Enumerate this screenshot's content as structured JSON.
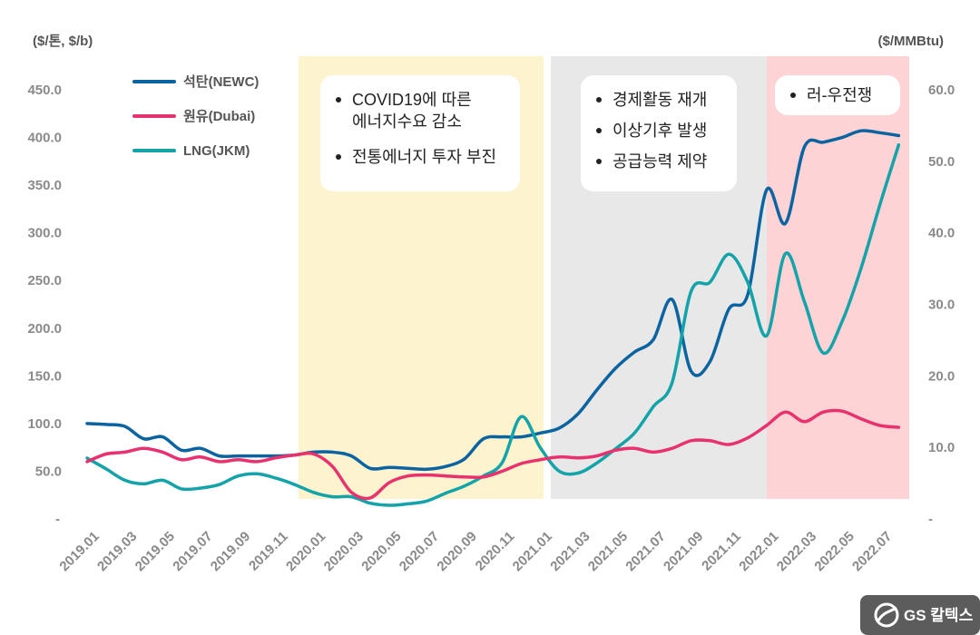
{
  "chart_data": {
    "type": "line",
    "y_left_label": "($/톤, $/b)",
    "y_right_label": "($/MMBtu)",
    "y_left_ticks": [
      "-",
      "50.0",
      "100.0",
      "150.0",
      "200.0",
      "250.0",
      "300.0",
      "350.0",
      "400.0",
      "450.0"
    ],
    "y_right_ticks": [
      "-",
      "10.0",
      "20.0",
      "30.0",
      "40.0",
      "50.0",
      "60.0"
    ],
    "ylim_left": [
      0,
      450
    ],
    "ylim_right": [
      0,
      60
    ],
    "x_tick_labels": [
      "2019.01",
      "2019.03",
      "2019.05",
      "2019.07",
      "2019.09",
      "2019.11",
      "2020.01",
      "2020.03",
      "2020.05",
      "2020.07",
      "2020.09",
      "2020.11",
      "2021.01",
      "2021.03",
      "2021.05",
      "2021.07",
      "2021.09",
      "2021.11",
      "2022.01",
      "2022.03",
      "2022.05",
      "2022.07"
    ],
    "x": [
      "2019.01",
      "2019.02",
      "2019.03",
      "2019.04",
      "2019.05",
      "2019.06",
      "2019.07",
      "2019.08",
      "2019.09",
      "2019.10",
      "2019.11",
      "2019.12",
      "2020.01",
      "2020.02",
      "2020.03",
      "2020.04",
      "2020.05",
      "2020.06",
      "2020.07",
      "2020.08",
      "2020.09",
      "2020.10",
      "2020.11",
      "2020.12",
      "2021.01",
      "2021.02",
      "2021.03",
      "2021.04",
      "2021.05",
      "2021.06",
      "2021.07",
      "2021.08",
      "2021.09",
      "2021.10",
      "2021.11",
      "2021.12",
      "2022.01",
      "2022.02",
      "2022.03",
      "2022.04",
      "2022.05",
      "2022.06",
      "2022.07",
      "2022.08"
    ],
    "series": [
      {
        "name": "석탄(NEWC)",
        "axis": "left",
        "color": "#0b64a0",
        "values": [
          100,
          99,
          97,
          84,
          86,
          72,
          74,
          66,
          66,
          66,
          66,
          67,
          70,
          70,
          66,
          53,
          54,
          53,
          52,
          55,
          63,
          84,
          86,
          86,
          90,
          95,
          110,
          135,
          158,
          175,
          188,
          230,
          155,
          165,
          220,
          235,
          345,
          310,
          390,
          395,
          400,
          407,
          405,
          402
        ]
      },
      {
        "name": "원유(Dubai)",
        "axis": "left",
        "color": "#e8326e",
        "values": [
          60,
          68,
          70,
          74,
          70,
          62,
          65,
          60,
          62,
          60,
          64,
          67,
          68,
          55,
          28,
          22,
          38,
          45,
          46,
          45,
          44,
          44,
          50,
          58,
          62,
          65,
          64,
          66,
          72,
          74,
          70,
          74,
          82,
          82,
          78,
          85,
          98,
          112,
          102,
          112,
          113,
          105,
          98,
          96
        ]
      },
      {
        "name": "LNG(JKM)",
        "axis": "right",
        "color": "#13a3a8",
        "values": [
          8.5,
          7.0,
          5.4,
          4.9,
          5.4,
          4.2,
          4.3,
          4.8,
          6.0,
          6.3,
          5.7,
          4.8,
          3.7,
          3.1,
          3.1,
          2.2,
          1.9,
          2.1,
          2.5,
          3.6,
          4.6,
          6.0,
          7.9,
          14.3,
          10.0,
          6.7,
          6.4,
          7.8,
          9.8,
          12.0,
          15.7,
          19.1,
          31.8,
          33.1,
          37.0,
          33.1,
          25.6,
          37.1,
          30.4,
          23.2,
          27.6,
          35.0,
          43.9,
          52.3
        ]
      }
    ],
    "periods": [
      {
        "start": "2019.12",
        "end": "2020.12",
        "color": "#fdf3cf",
        "notes": [
          [
            "COVID19에 따른",
            "에너지수요 감소"
          ],
          [
            "전통에너지 투자 부진"
          ]
        ]
      },
      {
        "start": "2021.01",
        "end": "2021.12",
        "color": "#e8e8e8",
        "notes": [
          [
            "경제활동 재개"
          ],
          [
            "이상기후 발생"
          ],
          [
            "공급능력 제약"
          ]
        ]
      },
      {
        "start": "2021.12",
        "end": "2022.08",
        "color": "#fdd3d6",
        "notes": [
          [
            "러-우전쟁"
          ]
        ]
      }
    ],
    "legend": {
      "placement": "top-left"
    },
    "grid": false
  },
  "logo": {
    "text": "GS 칼텍스"
  }
}
